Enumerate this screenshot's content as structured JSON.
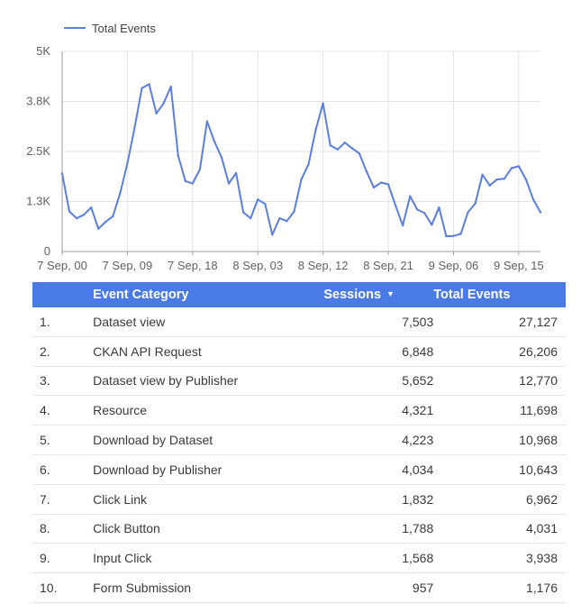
{
  "colors": {
    "line": "#5b7ee0",
    "header_bg": "#4a7ae6",
    "grid": "#e3e3e3"
  },
  "chart_data": {
    "type": "line",
    "series": [
      {
        "name": "Total Events",
        "values": [
          1950,
          1000,
          830,
          920,
          1100,
          570,
          740,
          880,
          1460,
          2200,
          3100,
          4080,
          4180,
          3450,
          3700,
          4120,
          2400,
          1760,
          1700,
          2050,
          3250,
          2750,
          2350,
          1700,
          1960,
          980,
          830,
          1300,
          1190,
          420,
          830,
          760,
          1000,
          1800,
          2180,
          3050,
          3700,
          2650,
          2550,
          2720,
          2580,
          2450,
          2000,
          1600,
          1720,
          1680,
          1150,
          650,
          1380,
          1050,
          960,
          670,
          1100,
          380,
          390,
          440,
          980,
          1200,
          1920,
          1650,
          1800,
          1820,
          2080,
          2130,
          1800,
          1300,
          980
        ]
      }
    ],
    "x_tick_labels": [
      "7 Sep, 00",
      "7 Sep, 09",
      "7 Sep, 18",
      "8 Sep, 03",
      "8 Sep, 12",
      "8 Sep, 21",
      "9 Sep, 06",
      "9 Sep, 15"
    ],
    "y_tick_labels": [
      "0",
      "1.3K",
      "2.5K",
      "3.8K",
      "5K"
    ],
    "ylim": [
      0,
      5000
    ],
    "legend_position": "top-left",
    "grid": true
  },
  "table": {
    "headers": {
      "category": "Event Category",
      "sessions": "Sessions",
      "total_events": "Total Events"
    },
    "sort_indicator": "▼",
    "rows": [
      {
        "idx": "1.",
        "category": "Dataset view",
        "sessions": "7,503",
        "total_events": "27,127"
      },
      {
        "idx": "2.",
        "category": "CKAN API Request",
        "sessions": "6,848",
        "total_events": "26,206"
      },
      {
        "idx": "3.",
        "category": "Dataset view by Publisher",
        "sessions": "5,652",
        "total_events": "12,770"
      },
      {
        "idx": "4.",
        "category": "Resource",
        "sessions": "4,321",
        "total_events": "11,698"
      },
      {
        "idx": "5.",
        "category": "Download by Dataset",
        "sessions": "4,223",
        "total_events": "10,968"
      },
      {
        "idx": "6.",
        "category": "Download by Publisher",
        "sessions": "4,034",
        "total_events": "10,643"
      },
      {
        "idx": "7.",
        "category": "Click Link",
        "sessions": "1,832",
        "total_events": "6,962"
      },
      {
        "idx": "8.",
        "category": "Click Button",
        "sessions": "1,788",
        "total_events": "4,031"
      },
      {
        "idx": "9.",
        "category": "Input Click",
        "sessions": "1,568",
        "total_events": "3,938"
      },
      {
        "idx": "10.",
        "category": "Form Submission",
        "sessions": "957",
        "total_events": "1,176"
      }
    ]
  }
}
